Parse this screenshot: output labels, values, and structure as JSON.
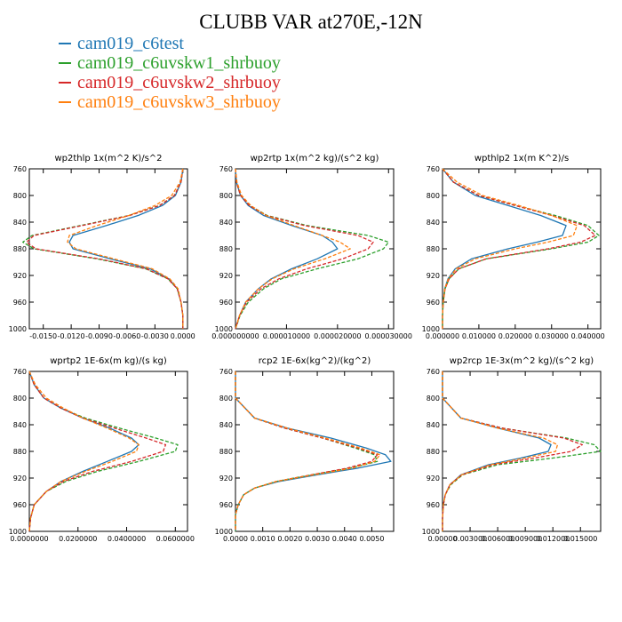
{
  "chart_data": {
    "type": "line",
    "title": "CLUBB VAR at270E,-12N",
    "legend_placement": "top-left",
    "series_styles": [
      {
        "name": "cam019_c6test",
        "color": "#1f77b4",
        "dashed": false
      },
      {
        "name": "cam019_c6uvskw1_shrbuoy",
        "color": "#2ca02c",
        "dashed": true
      },
      {
        "name": "cam019_c6uvskw2_shrbuoy",
        "color": "#d62728",
        "dashed": true
      },
      {
        "name": "cam019_c6uvskw3_shrbuoy",
        "color": "#ff7f0e",
        "dashed": true
      }
    ],
    "panels": [
      {
        "title": "wp2thlp  1x(m^2 K)/s^2",
        "xlim": [
          -0.0165,
          0.0005
        ],
        "ylim": [
          760,
          1000
        ],
        "xticks": [
          -0.015,
          -0.012,
          -0.009,
          -0.006,
          -0.003,
          0.0
        ],
        "xtick_labels": [
          "-0.0150",
          "-0.0120",
          "-0.0090",
          "-0.0060",
          "-0.0030",
          "0.0000"
        ],
        "yticks": [
          760,
          800,
          840,
          880,
          920,
          960,
          1000
        ],
        "ytick_labels": [
          "760",
          "800",
          "840",
          "880",
          "920",
          "960",
          "1000"
        ],
        "y": [
          760,
          780,
          800,
          815,
          830,
          845,
          860,
          870,
          880,
          895,
          910,
          925,
          940,
          960,
          980,
          1000
        ],
        "series": [
          {
            "values": [
              0.0,
              -0.0002,
              -0.0008,
              -0.0022,
              -0.0048,
              -0.0082,
              -0.0118,
              -0.0122,
              -0.0118,
              -0.0078,
              -0.0035,
              -0.0015,
              -0.0006,
              -0.0002,
              0.0,
              0.0
            ]
          },
          {
            "values": [
              0.0,
              -0.0002,
              -0.0009,
              -0.0025,
              -0.0058,
              -0.011,
              -0.0162,
              -0.0172,
              -0.016,
              -0.0092,
              -0.004,
              -0.0016,
              -0.0006,
              -0.0002,
              0.0,
              0.0
            ]
          },
          {
            "values": [
              0.0,
              -0.0002,
              -0.0009,
              -0.0025,
              -0.0057,
              -0.0108,
              -0.016,
              -0.0168,
              -0.0158,
              -0.009,
              -0.0039,
              -0.0016,
              -0.0006,
              -0.0002,
              0.0,
              0.0
            ]
          },
          {
            "values": [
              0.0,
              -0.0003,
              -0.0012,
              -0.003,
              -0.0058,
              -0.0092,
              -0.0122,
              -0.0124,
              -0.0115,
              -0.0074,
              -0.0033,
              -0.0014,
              -0.0005,
              -0.0002,
              0.0,
              0.0
            ]
          }
        ]
      },
      {
        "title": "wp2rtp  1x(m^2 kg)/(s^2 kg)",
        "xlim": [
          0.0,
          3.1e-05
        ],
        "ylim": [
          760,
          1000
        ],
        "xticks": [
          0.0,
          1e-05,
          2e-05,
          3e-05
        ],
        "xtick_labels": [
          "0.000000000",
          "0.000010000",
          "0.000020000",
          "0.000030000"
        ],
        "yticks": [
          760,
          800,
          840,
          880,
          920,
          960,
          1000
        ],
        "ytick_labels": [
          "760",
          "800",
          "840",
          "880",
          "920",
          "960",
          "1000"
        ],
        "y": [
          760,
          780,
          800,
          815,
          830,
          845,
          860,
          870,
          880,
          895,
          910,
          925,
          940,
          960,
          980,
          1000
        ],
        "series": [
          {
            "values": [
              0.0,
              2e-07,
              1e-06,
              2.5e-06,
              5.5e-06,
              1.1e-05,
              1.7e-05,
              1.9e-05,
              2e-05,
              1.6e-05,
              1.1e-05,
              7e-06,
              4.5e-06,
              2e-06,
              8e-07,
              0.0
            ]
          },
          {
            "values": [
              0.0,
              2e-07,
              1e-06,
              2.8e-06,
              6.2e-06,
              1.4e-05,
              2.6e-05,
              3e-05,
              2.9e-05,
              2.4e-05,
              1.6e-05,
              9e-06,
              5.5e-06,
              2.5e-06,
              9e-07,
              0.0
            ]
          },
          {
            "values": [
              0.0,
              2e-07,
              1e-06,
              2.7e-06,
              6e-06,
              1.35e-05,
              2.4e-05,
              2.7e-05,
              2.6e-05,
              2.1e-05,
              1.4e-05,
              8.5e-06,
              5e-06,
              2.2e-06,
              8e-07,
              0.0
            ]
          },
          {
            "values": [
              0.0,
              3e-07,
              1.2e-06,
              3e-06,
              6e-06,
              1.15e-05,
              1.7e-05,
              2.05e-05,
              2.25e-05,
              1.75e-05,
              1.15e-05,
              7.2e-06,
              4.5e-06,
              2e-06,
              8e-07,
              0.0
            ]
          }
        ]
      },
      {
        "title": "wpthlp2  1x(m K^2)/s",
        "xlim": [
          0.0,
          0.0435
        ],
        "ylim": [
          760,
          1000
        ],
        "xticks": [
          0.0,
          0.01,
          0.02,
          0.03,
          0.04
        ],
        "xtick_labels": [
          "0.000000",
          "0.010000",
          "0.020000",
          "0.030000",
          "0.040000"
        ],
        "yticks": [
          760,
          800,
          840,
          880,
          920,
          960,
          1000
        ],
        "ytick_labels": [
          "760",
          "800",
          "840",
          "880",
          "920",
          "960",
          "1000"
        ],
        "y": [
          760,
          780,
          800,
          815,
          830,
          845,
          860,
          870,
          880,
          895,
          910,
          925,
          940,
          960,
          980,
          1000
        ],
        "series": [
          {
            "values": [
              0.0,
              0.003,
              0.009,
              0.018,
              0.027,
              0.034,
              0.033,
              0.026,
              0.018,
              0.008,
              0.0035,
              0.0015,
              0.0006,
              0.0002,
              0.0,
              0.0
            ]
          },
          {
            "values": [
              0.0,
              0.003,
              0.01,
              0.02,
              0.031,
              0.04,
              0.043,
              0.04,
              0.03,
              0.012,
              0.0045,
              0.0018,
              0.0007,
              0.0002,
              0.0,
              0.0
            ]
          },
          {
            "values": [
              0.0,
              0.003,
              0.01,
              0.02,
              0.03,
              0.039,
              0.042,
              0.038,
              0.029,
              0.012,
              0.0045,
              0.0018,
              0.0007,
              0.0002,
              0.0,
              0.0
            ]
          },
          {
            "values": [
              0.0,
              0.004,
              0.011,
              0.021,
              0.03,
              0.037,
              0.036,
              0.029,
              0.02,
              0.009,
              0.0038,
              0.0016,
              0.0006,
              0.0002,
              0.0,
              0.0
            ]
          }
        ]
      },
      {
        "title": "wprtp2  1E-6x(m kg)/(s kg)",
        "xlim": [
          0.0,
          0.065
        ],
        "ylim": [
          760,
          1000
        ],
        "xticks": [
          0.0,
          0.02,
          0.04,
          0.06
        ],
        "xtick_labels": [
          "0.0000000",
          "0.0200000",
          "0.0400000",
          "0.0600000"
        ],
        "yticks": [
          760,
          800,
          840,
          880,
          920,
          960,
          1000
        ],
        "ytick_labels": [
          "760",
          "800",
          "840",
          "880",
          "920",
          "960",
          "1000"
        ],
        "y": [
          760,
          780,
          800,
          815,
          830,
          845,
          860,
          870,
          880,
          895,
          910,
          925,
          940,
          960,
          980,
          1000
        ],
        "series": [
          {
            "values": [
              0.0,
              0.002,
              0.006,
              0.013,
              0.022,
              0.033,
              0.042,
              0.045,
              0.042,
              0.032,
              0.022,
              0.013,
              0.007,
              0.002,
              0.0005,
              0.0
            ]
          },
          {
            "values": [
              0.0,
              0.002,
              0.006,
              0.013,
              0.023,
              0.037,
              0.052,
              0.061,
              0.06,
              0.045,
              0.028,
              0.015,
              0.007,
              0.002,
              0.0005,
              0.0
            ]
          },
          {
            "values": [
              0.0,
              0.002,
              0.006,
              0.013,
              0.022,
              0.035,
              0.048,
              0.056,
              0.055,
              0.042,
              0.026,
              0.014,
              0.007,
              0.002,
              0.0005,
              0.0
            ]
          },
          {
            "values": [
              0.0,
              0.0025,
              0.007,
              0.014,
              0.022,
              0.032,
              0.041,
              0.045,
              0.044,
              0.034,
              0.023,
              0.013,
              0.007,
              0.002,
              0.0005,
              0.0
            ]
          }
        ]
      },
      {
        "title": "rcp2  1E-6x(kg^2)/(kg^2)",
        "xlim": [
          0.0,
          0.0058
        ],
        "ylim": [
          760,
          1000
        ],
        "xticks": [
          0.0,
          0.001,
          0.002,
          0.003,
          0.004,
          0.005
        ],
        "xtick_labels": [
          "0.0000",
          "0.0010",
          "0.0020",
          "0.0030",
          "0.0040",
          "0.0050"
        ],
        "yticks": [
          760,
          800,
          840,
          880,
          920,
          960,
          1000
        ],
        "ytick_labels": [
          "760",
          "800",
          "840",
          "880",
          "920",
          "960",
          "1000"
        ],
        "y": [
          760,
          800,
          830,
          845,
          860,
          875,
          885,
          895,
          905,
          915,
          925,
          935,
          945,
          960,
          975,
          1000
        ],
        "series": [
          {
            "values": [
              0.0,
              0.0,
              0.0007,
              0.0019,
              0.0035,
              0.0048,
              0.0055,
              0.0057,
              0.0045,
              0.003,
              0.0016,
              0.0007,
              0.0003,
              0.0001,
              0.0,
              0.0
            ]
          },
          {
            "values": [
              0.0,
              0.0,
              0.0007,
              0.0018,
              0.0032,
              0.0044,
              0.0051,
              0.0052,
              0.0042,
              0.0028,
              0.0015,
              0.0007,
              0.0003,
              0.0001,
              0.0,
              0.0
            ]
          },
          {
            "values": [
              0.0,
              0.0,
              0.0007,
              0.0018,
              0.0032,
              0.0045,
              0.0052,
              0.005,
              0.0041,
              0.0028,
              0.0015,
              0.0007,
              0.0003,
              0.0001,
              0.0,
              0.0
            ]
          },
          {
            "values": [
              0.0,
              0.0,
              0.0007,
              0.0019,
              0.0033,
              0.0046,
              0.0053,
              0.0051,
              0.0043,
              0.0029,
              0.0015,
              0.0007,
              0.0003,
              0.0001,
              0.0,
              0.0
            ]
          }
        ]
      },
      {
        "title": "wp2rcp  1E-3x(m^2 kg)/(s^2 kg)",
        "xlim": [
          0.0,
          0.0172
        ],
        "ylim": [
          760,
          1000
        ],
        "xticks": [
          0.0,
          0.003,
          0.006,
          0.009,
          0.012,
          0.015
        ],
        "xtick_labels": [
          "0.00000",
          "0.003000",
          "0.006000",
          "0.009000",
          "0.012000",
          "0.015000"
        ],
        "yticks": [
          760,
          800,
          840,
          880,
          920,
          960,
          1000
        ],
        "ytick_labels": [
          "760",
          "800",
          "840",
          "880",
          "920",
          "960",
          "1000"
        ],
        "y": [
          760,
          800,
          830,
          845,
          860,
          870,
          880,
          890,
          900,
          915,
          930,
          945,
          960,
          980,
          1000
        ],
        "series": [
          {
            "values": [
              0.0,
              0.0,
              0.002,
              0.006,
              0.0105,
              0.0118,
              0.0115,
              0.0085,
              0.005,
              0.002,
              0.0008,
              0.0003,
              0.0001,
              0.0,
              0.0
            ]
          },
          {
            "values": [
              0.0,
              0.0,
              0.002,
              0.0065,
              0.0135,
              0.0165,
              0.0172,
              0.012,
              0.006,
              0.0022,
              0.0009,
              0.0003,
              0.0001,
              0.0,
              0.0
            ]
          },
          {
            "values": [
              0.0,
              0.0,
              0.002,
              0.0065,
              0.0132,
              0.0152,
              0.014,
              0.01,
              0.0055,
              0.0021,
              0.0008,
              0.0003,
              0.0001,
              0.0,
              0.0
            ]
          },
          {
            "values": [
              0.0,
              0.0,
              0.002,
              0.006,
              0.011,
              0.0125,
              0.0123,
              0.009,
              0.0052,
              0.0021,
              0.0008,
              0.0003,
              0.0001,
              0.0,
              0.0
            ]
          }
        ]
      }
    ]
  }
}
